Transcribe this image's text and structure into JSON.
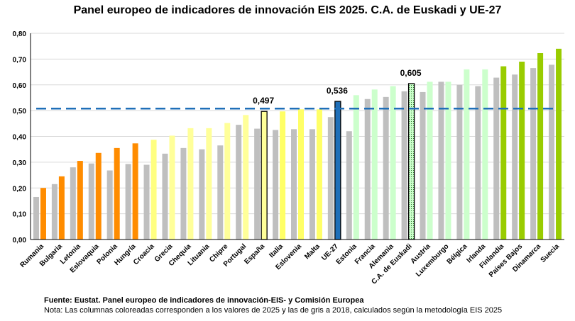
{
  "chart_data": {
    "type": "bar",
    "title": "Panel europeo de indicadores de innovación EIS 2025. C.A. de Euskadi y UE-27",
    "categories": [
      "Rumania",
      "Bulgaria",
      "Letonia",
      "Eslovaquia",
      "Polonia",
      "Hungría",
      "Croacia",
      "Grecia",
      "Chequia",
      "Lituania",
      "Chipre",
      "Portugal",
      "España",
      "Italia",
      "Eslovenia",
      "Malta",
      "UE-27",
      "Estonia",
      "Francia",
      "Alemania",
      "C.A. de Euskadi",
      "Austria",
      "Luxemburgo",
      "Bélgica",
      "Irlanda",
      "Finlandia",
      "Países Bajos",
      "Dinamarca",
      "Suecia"
    ],
    "series": [
      {
        "values": [
          0.165,
          0.215,
          0.28,
          0.295,
          0.268,
          0.293,
          0.29,
          0.333,
          0.355,
          0.35,
          0.365,
          0.445,
          0.43,
          0.425,
          0.428,
          0.428,
          0.475,
          0.42,
          0.545,
          0.553,
          0.575,
          0.572,
          0.612,
          0.6,
          0.595,
          0.628,
          0.64,
          0.665,
          0.678
        ]
      },
      {
        "values": [
          0.2,
          0.245,
          0.305,
          0.336,
          0.355,
          0.373,
          0.387,
          0.403,
          0.432,
          0.432,
          0.452,
          0.483,
          0.497,
          0.497,
          0.505,
          0.505,
          0.536,
          0.56,
          0.582,
          0.595,
          0.605,
          0.612,
          0.612,
          0.66,
          0.66,
          0.672,
          0.69,
          0.723,
          0.74
        ]
      }
    ],
    "bar_colors_2025": [
      "#ff8c00",
      "#ff8c00",
      "#ff8c00",
      "#ff8c00",
      "#ff8c00",
      "#ff8c00",
      "#ffff80",
      "#ffff99",
      "#ffff99",
      "#ffff99",
      "#ffff99",
      "#ffff99",
      "#ffff99",
      "#ffff66",
      "#ffff66",
      "#ffff66",
      "#1f6fb8",
      "#ccffcc",
      "#ccffcc",
      "#ccffcc",
      "#ccffcc",
      "#ccffcc",
      "#ccffcc",
      "#ccffcc",
      "#ccffcc",
      "#99cc00",
      "#99cc00",
      "#99cc00",
      "#99cc00"
    ],
    "color_2018": "#bfbfbf",
    "reference_line": 0.508,
    "reference_line_color": "#1f6fb8",
    "annotations": [
      {
        "category": "España",
        "label": "0,497"
      },
      {
        "category": "UE-27",
        "label": "0,536"
      },
      {
        "category": "C.A. de Euskadi",
        "label": "0,605"
      }
    ],
    "y_ticks": [
      "0,00",
      "0,10",
      "0,20",
      "0,30",
      "0,40",
      "0,50",
      "0,60",
      "0,70",
      "0,80"
    ],
    "ylim": [
      0,
      0.8
    ],
    "grid": true
  },
  "footer": {
    "source": "Fuente: Eustat. Panel europeo de indicadores de innovación-EIS- y Comisión Europea",
    "note": "Nota: Las columnas coloreadas corresponden a los valores de 2025 y las de gris a 2018, calculados según la metodología EIS 2025"
  }
}
